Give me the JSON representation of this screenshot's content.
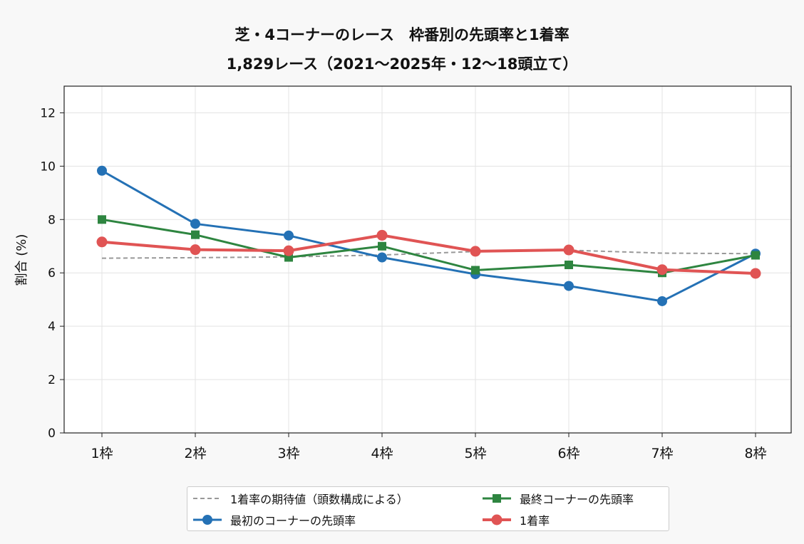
{
  "chart_data": {
    "type": "line",
    "title": "芝・4コーナーのレース　枠番別の先頭率と1着率",
    "subtitle": "1,829レース（2021〜2025年・12〜18頭立て）",
    "xlabel": "",
    "ylabel": "割合 (%)",
    "ylim": [
      0,
      13
    ],
    "yticks": [
      "0",
      "2",
      "4",
      "6",
      "8",
      "10",
      "12"
    ],
    "categories": [
      "1枠",
      "2枠",
      "3枠",
      "4枠",
      "5枠",
      "6枠",
      "7枠",
      "8枠"
    ],
    "grid": true,
    "legend_position": "bottom-center",
    "series": [
      {
        "name": "1着率の期待値（頭数構成による）",
        "color": "#999999",
        "style": "dashed",
        "marker": "none",
        "values": [
          6.55,
          6.57,
          6.6,
          6.67,
          6.8,
          6.85,
          6.74,
          6.72
        ]
      },
      {
        "name": "最初のコーナーの先頭率",
        "color": "#2471b5",
        "style": "solid",
        "marker": "circle",
        "values": [
          9.83,
          7.84,
          7.4,
          6.58,
          5.95,
          5.51,
          4.94,
          6.72
        ]
      },
      {
        "name": "最終コーナーの先頭率",
        "color": "#2e8540",
        "style": "solid",
        "marker": "square",
        "values": [
          8.0,
          7.43,
          6.58,
          7.0,
          6.1,
          6.3,
          6.0,
          6.66
        ]
      },
      {
        "name": "1着率",
        "color": "#e05454",
        "style": "solid",
        "marker": "circle-large",
        "values": [
          7.16,
          6.87,
          6.83,
          7.41,
          6.81,
          6.86,
          6.12,
          5.98
        ]
      }
    ]
  }
}
